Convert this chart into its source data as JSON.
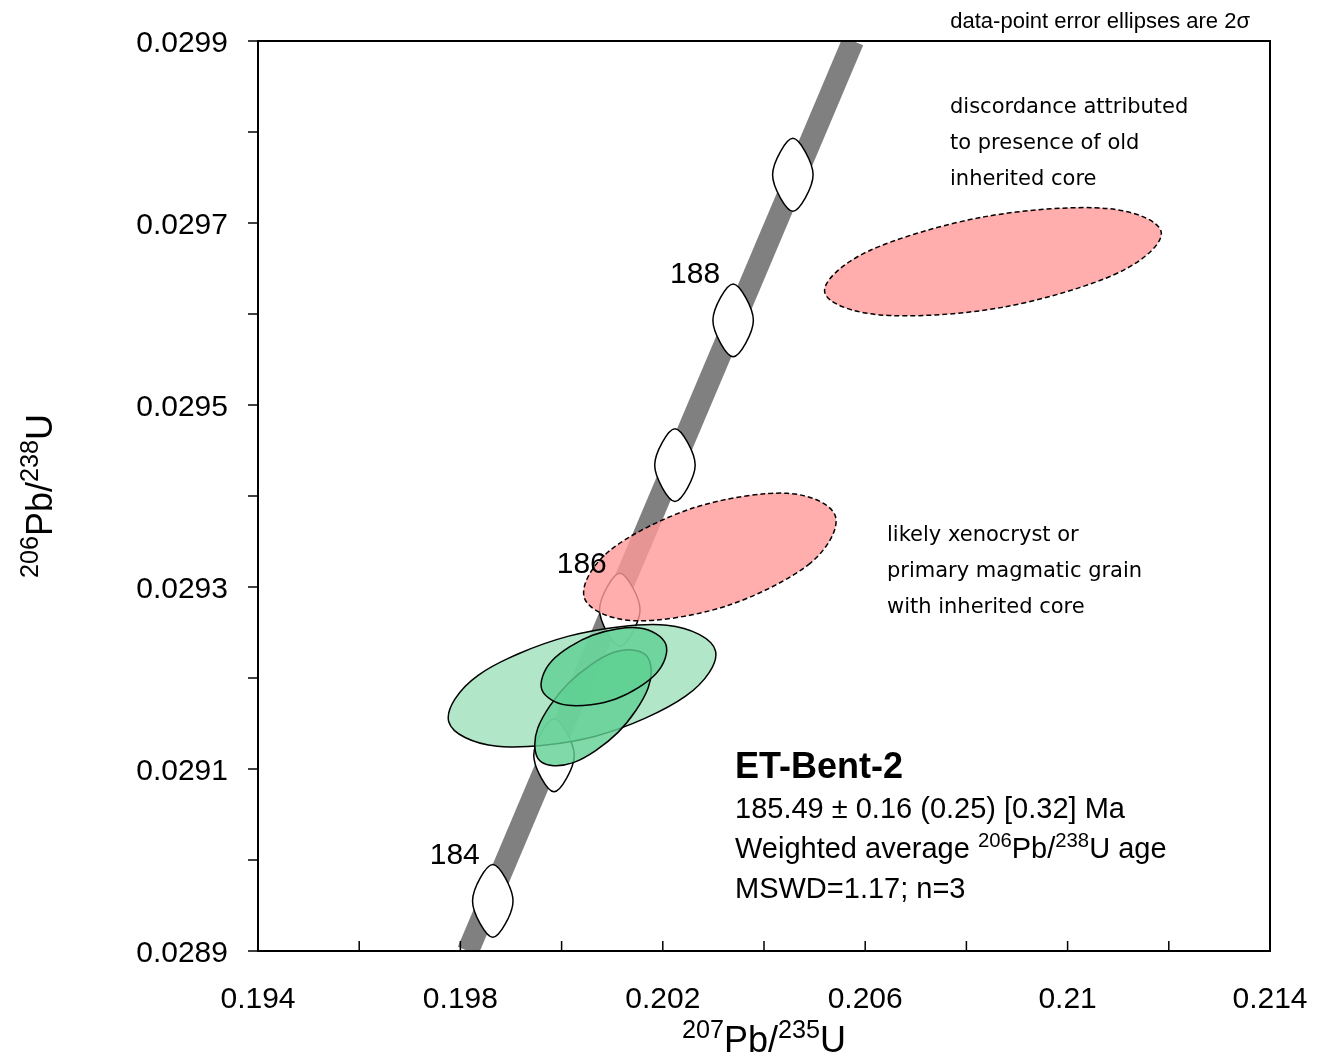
{
  "chart_data": {
    "type": "area",
    "xlabel": "$^{207}$Pb/$^{235}$U",
    "ylabel": "$^{206}$Pb/$^{238}$U",
    "xlim": [
      0.194,
      0.214
    ],
    "ylim": [
      0.0289,
      0.0299
    ],
    "xticks": [
      0.194,
      {
        "value": 0.196,
        "label": null
      },
      0.198,
      {
        "value": 0.2,
        "label": null
      },
      0.202,
      {
        "value": 0.204,
        "label": null
      },
      0.206,
      {
        "value": 0.208,
        "label": null
      },
      0.21,
      {
        "value": 0.212,
        "label": null
      },
      0.214
    ],
    "yticks": [
      0.0289,
      {
        "value": 0.029,
        "label": null
      },
      0.0291,
      {
        "value": 0.0292,
        "label": null
      },
      0.0293,
      {
        "value": 0.0294,
        "label": null
      },
      0.0295,
      {
        "value": 0.0296,
        "label": null
      },
      0.0297,
      {
        "value": 0.0298,
        "label": null
      },
      0.0299
    ],
    "series": [
      {
        "type": "line",
        "color": "#808080",
        "x": [
          0.19815,
          0.20576
        ],
        "values": [
          0.0289,
          0.0299
        ]
      },
      {
        "color": "#ffffff",
        "line_style": "solid",
        "x": [
          0.19904,
          0.19864,
          0.19824,
          0.19864
        ],
        "values": [
          0.028955,
          0.028995,
          0.028955,
          0.028915
        ]
      },
      {
        "color": "#ffffff",
        "line_style": "solid",
        "x": [
          0.20025,
          0.19985,
          0.19945,
          0.19985
        ],
        "values": [
          0.029115,
          0.029155,
          0.029115,
          0.029075
        ]
      },
      {
        "color": "#ffffff",
        "line_style": "solid",
        "x": [
          0.20155,
          0.20115,
          0.20075,
          0.20115
        ],
        "values": [
          0.029275,
          0.029315,
          0.029275,
          0.029235
        ]
      },
      {
        "color": "#ffffff",
        "line_style": "solid",
        "x": [
          0.20264,
          0.20224,
          0.20184,
          0.20224
        ],
        "values": [
          0.029434,
          0.029474,
          0.029434,
          0.029394
        ]
      },
      {
        "color": "#ffffff",
        "line_style": "solid",
        "x": [
          0.20379,
          0.20339,
          0.20299,
          0.20339
        ],
        "values": [
          0.029593,
          0.029633,
          0.029593,
          0.029553
        ]
      },
      {
        "color": "#ffffff",
        "line_style": "solid",
        "x": [
          0.20497,
          0.20457,
          0.20417,
          0.20457
        ],
        "values": [
          0.029753,
          0.029793,
          0.029753,
          0.029713
        ]
      },
      {
        "color": "#ff9999",
        "line_style": "dashed",
        "x": [
          0.21185,
          0.21099,
          0.20868,
          0.20629,
          0.2052,
          0.20606,
          0.20837,
          0.21077
        ],
        "values": [
          0.02969,
          0.029645,
          0.029607,
          0.029599,
          0.029624,
          0.029669,
          0.029707,
          0.029716
        ]
      },
      {
        "color": "#ff9999",
        "line_style": "dashed",
        "x": [
          0.20541,
          0.20491,
          0.20325,
          0.20141,
          0.20045,
          0.20095,
          0.20261,
          0.20446
        ],
        "values": [
          0.029378,
          0.029326,
          0.029279,
          0.029263,
          0.029288,
          0.02934,
          0.029387,
          0.029403
        ]
      },
      {
        "color": "#9ee0bc",
        "line_style": "solid",
        "x": [
          0.20304,
          0.20245,
          0.20067,
          0.19873,
          0.19777,
          0.19835,
          0.20014,
          0.20208
        ],
        "values": [
          0.02923,
          0.02918,
          0.029136,
          0.029125,
          0.029152,
          0.029203,
          0.029246,
          0.029258
        ]
      },
      {
        "color": "#5fcf92",
        "line_style": "solid",
        "x": [
          0.20167,
          0.20171,
          0.20111,
          0.20023,
          0.19957,
          0.19953,
          0.20013,
          0.20102
        ],
        "values": [
          0.029225,
          0.029189,
          0.02914,
          0.029107,
          0.029109,
          0.029145,
          0.029194,
          0.029228
        ]
      },
      {
        "color": "#5fcf92",
        "line_style": "solid",
        "x": [
          0.20206,
          0.20187,
          0.20107,
          0.20013,
          0.19961,
          0.19981,
          0.20061,
          0.20154
        ],
        "values": [
          0.029237,
          0.029205,
          0.029177,
          0.02917,
          0.029187,
          0.029219,
          0.029247,
          0.029255
        ]
      }
    ],
    "annotations": [
      {
        "text": "184",
        "x": 0.19864,
        "y": 0.028955
      },
      {
        "text": "186",
        "x": 0.20115,
        "y": 0.029275
      },
      {
        "text": "188",
        "x": 0.20339,
        "y": 0.029593
      },
      "data-point error ellipses are 2σ",
      "discordance attributed to presence of old inherited core",
      "likely xenocryst or primary magmatic grain with inherited core",
      "ET-Bent-2",
      "185.49 ± 0.16 (0.25) [0.32] Ma",
      "Weighted average $^{206}$Pb/$^{238}$U age",
      "MSWD=1.17; n=3"
    ]
  }
}
